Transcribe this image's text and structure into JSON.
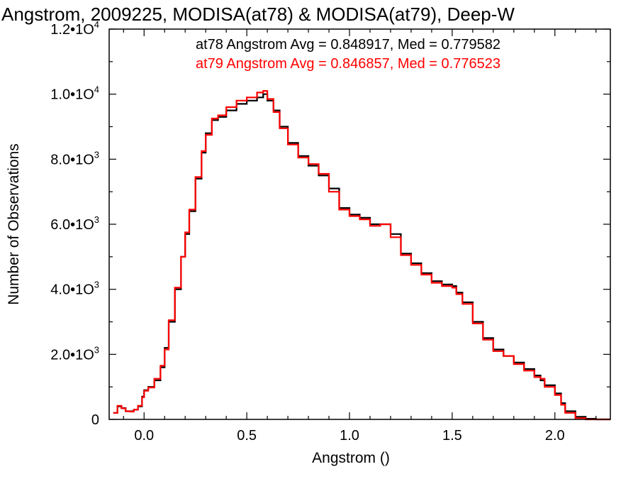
{
  "chart_data": {
    "type": "line",
    "style": "step-histogram",
    "title": "Angstrom, 2009225, MODISA(at78) & MODISA(at79), Deep-W",
    "xlabel": "Angstrom ()",
    "ylabel": "Number of Observations",
    "xlim": [
      -0.17,
      2.27
    ],
    "ylim": [
      0,
      12000
    ],
    "grid": false,
    "x_ticks": [
      {
        "value": 0.0,
        "label": "0.0"
      },
      {
        "value": 0.5,
        "label": "0.5"
      },
      {
        "value": 1.0,
        "label": "1.0"
      },
      {
        "value": 1.5,
        "label": "1.5"
      },
      {
        "value": 2.0,
        "label": "2.0"
      }
    ],
    "y_ticks": [
      {
        "value": 0,
        "mantissa": "0",
        "exponent": ""
      },
      {
        "value": 2000,
        "mantissa": "2.0•1O",
        "exponent": "3"
      },
      {
        "value": 4000,
        "mantissa": "4.0•1O",
        "exponent": "3"
      },
      {
        "value": 6000,
        "mantissa": "6.0•1O",
        "exponent": "3"
      },
      {
        "value": 8000,
        "mantissa": "8.0•1O",
        "exponent": "3"
      },
      {
        "value": 10000,
        "mantissa": "1.0•1O",
        "exponent": "4"
      },
      {
        "value": 12000,
        "mantissa": "1.2•1O",
        "exponent": "4"
      }
    ],
    "annotations": [
      {
        "text": "at78 Angstrom Avg = 0.848917, Med = 0.779582",
        "color": "#000000"
      },
      {
        "text": "at79 Angstrom Avg = 0.846857, Med = 0.776523",
        "color": "#ff0000"
      }
    ],
    "series": [
      {
        "color": "#000000",
        "x": [
          -0.15,
          -0.13,
          -0.11,
          -0.09,
          -0.07,
          -0.05,
          -0.03,
          -0.01,
          0.0,
          0.02,
          0.05,
          0.08,
          0.1,
          0.12,
          0.15,
          0.18,
          0.2,
          0.22,
          0.25,
          0.28,
          0.3,
          0.33,
          0.36,
          0.4,
          0.45,
          0.5,
          0.55,
          0.58,
          0.6,
          0.63,
          0.66,
          0.7,
          0.75,
          0.8,
          0.85,
          0.9,
          0.95,
          1.0,
          1.05,
          1.1,
          1.15,
          1.2,
          1.25,
          1.3,
          1.35,
          1.4,
          1.45,
          1.5,
          1.52,
          1.55,
          1.6,
          1.65,
          1.7,
          1.75,
          1.8,
          1.85,
          1.9,
          1.93,
          1.95,
          2.0,
          2.03,
          2.05,
          2.1,
          2.15,
          2.2,
          2.27
        ],
        "values": [
          200,
          400,
          350,
          250,
          250,
          300,
          400,
          700,
          900,
          1000,
          1200,
          1600,
          2200,
          3000,
          4000,
          5000,
          5700,
          6400,
          7400,
          8200,
          8800,
          9200,
          9300,
          9500,
          9700,
          9800,
          9900,
          10000,
          9800,
          9500,
          9000,
          8500,
          8100,
          7800,
          7500,
          7100,
          6500,
          6300,
          6200,
          6000,
          6000,
          5700,
          5100,
          4800,
          4500,
          4250,
          4150,
          4100,
          3900,
          3600,
          3000,
          2500,
          2150,
          1950,
          1750,
          1550,
          1350,
          1200,
          1050,
          800,
          500,
          250,
          80,
          20,
          0,
          0
        ]
      },
      {
        "color": "#ff0000",
        "x": [
          -0.15,
          -0.13,
          -0.11,
          -0.09,
          -0.07,
          -0.05,
          -0.03,
          -0.01,
          0.0,
          0.02,
          0.05,
          0.08,
          0.1,
          0.12,
          0.15,
          0.18,
          0.2,
          0.22,
          0.25,
          0.28,
          0.3,
          0.33,
          0.36,
          0.4,
          0.45,
          0.5,
          0.55,
          0.58,
          0.6,
          0.63,
          0.66,
          0.7,
          0.75,
          0.8,
          0.85,
          0.9,
          0.95,
          1.0,
          1.05,
          1.1,
          1.15,
          1.2,
          1.25,
          1.3,
          1.35,
          1.4,
          1.45,
          1.5,
          1.52,
          1.55,
          1.6,
          1.65,
          1.7,
          1.75,
          1.8,
          1.85,
          1.9,
          1.93,
          1.95,
          2.0,
          2.03,
          2.05,
          2.1,
          2.15,
          2.2,
          2.27
        ],
        "values": [
          200,
          420,
          340,
          250,
          240,
          300,
          420,
          680,
          880,
          980,
          1250,
          1650,
          2150,
          3050,
          4050,
          5000,
          5750,
          6450,
          7450,
          8250,
          8750,
          9250,
          9350,
          9600,
          9800,
          9900,
          10050,
          10100,
          9850,
          9450,
          8950,
          8450,
          8050,
          7850,
          7550,
          7000,
          6450,
          6250,
          6150,
          5950,
          6000,
          5600,
          5050,
          4750,
          4450,
          4200,
          4100,
          4050,
          3850,
          3550,
          2950,
          2450,
          2100,
          1950,
          1700,
          1500,
          1300,
          1250,
          1000,
          750,
          450,
          200,
          40,
          0,
          0,
          0
        ]
      }
    ]
  }
}
